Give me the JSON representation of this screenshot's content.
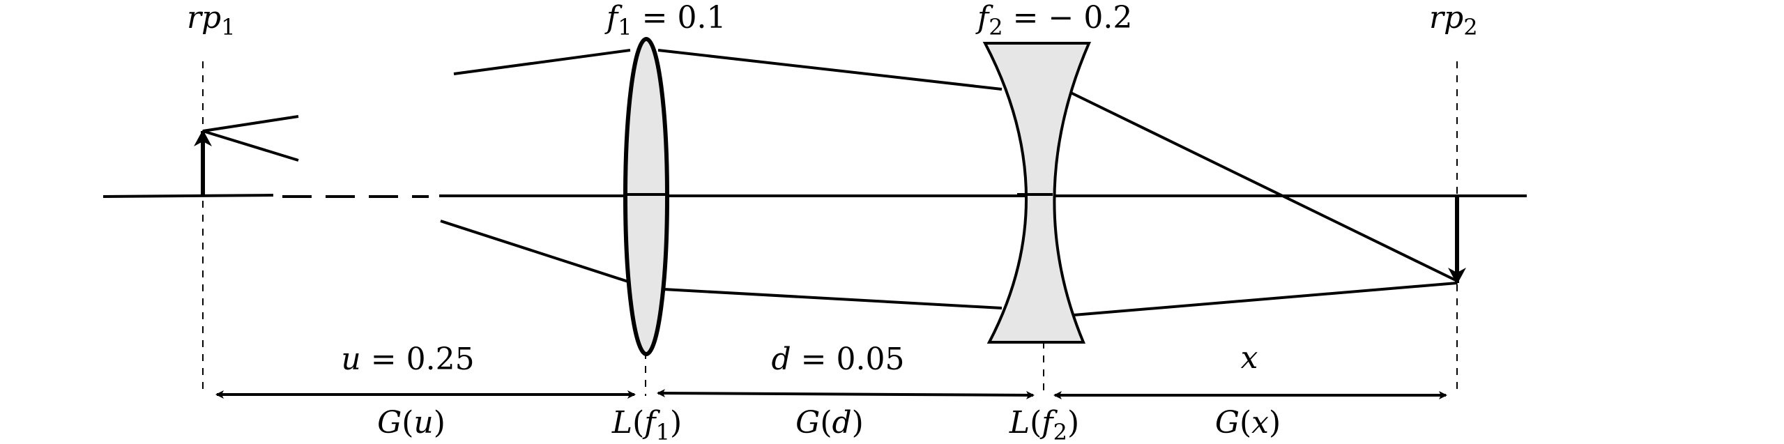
{
  "planes": {
    "rp1": {
      "base": "rp",
      "sub": "1"
    },
    "rp2": {
      "base": "rp",
      "sub": "2"
    }
  },
  "lens1": {
    "f_base": "f",
    "f_sub": "1",
    "f_value": " = 0.1"
  },
  "lens2": {
    "f_base": "f",
    "f_sub": "2",
    "f_value": " = − 0.2"
  },
  "distances": {
    "u": {
      "label_var": "u",
      "label_value": " = 0.25"
    },
    "d": {
      "label_var": "d",
      "label_value": " = 0.05"
    },
    "x": {
      "label_var": "x"
    }
  },
  "operators": {
    "Gu": {
      "fn": "G",
      "open": "(",
      "arg": "u",
      "close": ")"
    },
    "Lf1": {
      "fn": "L",
      "open": "(",
      "arg": "f",
      "sub": "1",
      "close": ")"
    },
    "Gd": {
      "fn": "G",
      "open": "(",
      "arg": "d",
      "close": ")"
    },
    "Lf2": {
      "fn": "L",
      "open": "(",
      "arg": "f",
      "sub": "2",
      "close": ")"
    },
    "Gx": {
      "fn": "G",
      "open": "(",
      "arg": "x",
      "close": ")"
    }
  },
  "colors": {
    "ink": "#000000",
    "lens_fill": "#e6e6e6"
  }
}
